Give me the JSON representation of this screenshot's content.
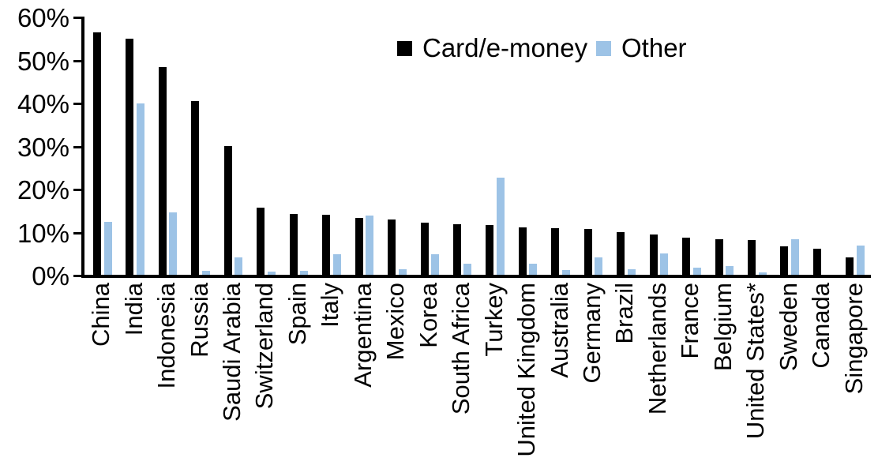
{
  "chart_data": {
    "type": "bar",
    "title": "",
    "xlabel": "",
    "ylabel": "",
    "ylim": [
      0,
      60
    ],
    "ytick_step": 10,
    "ytick_labels": [
      "0%",
      "10%",
      "20%",
      "30%",
      "40%",
      "50%",
      "60%"
    ],
    "grid": false,
    "legend_position": "top-center",
    "categories": [
      "China",
      "India",
      "Indonesia",
      "Russia",
      "Saudi Arabia",
      "Switzerland",
      "Spain",
      "Italy",
      "Argentina",
      "Mexico",
      "Korea",
      "South Africa",
      "Turkey",
      "United Kingdom",
      "Australia",
      "Germany",
      "Brazil",
      "Netherlands",
      "France",
      "Belgium",
      "United States*",
      "Sweden",
      "Canada",
      "Singapore"
    ],
    "series": [
      {
        "name": "Card/e-money",
        "color": "#000000",
        "values": [
          56.4,
          55.0,
          48.3,
          40.5,
          29.9,
          15.6,
          14.1,
          14.0,
          13.3,
          12.9,
          12.2,
          11.8,
          11.6,
          11.1,
          10.9,
          10.6,
          10.0,
          9.3,
          8.7,
          8.2,
          8.0,
          6.6,
          6.1,
          4.1
        ]
      },
      {
        "name": "Other",
        "color": "#9DC3E6",
        "values": [
          12.4,
          39.8,
          14.6,
          1.0,
          4.0,
          0.8,
          1.0,
          4.7,
          13.8,
          1.3,
          4.7,
          2.5,
          22.6,
          2.5,
          1.1,
          4.0,
          1.3,
          4.9,
          1.6,
          2.1,
          0.5,
          8.2,
          0.0,
          6.8
        ]
      }
    ]
  },
  "legend": {
    "items": [
      {
        "label": "Card/e-money",
        "color": "#000000"
      },
      {
        "label": "Other",
        "color": "#9DC3E6"
      }
    ]
  }
}
